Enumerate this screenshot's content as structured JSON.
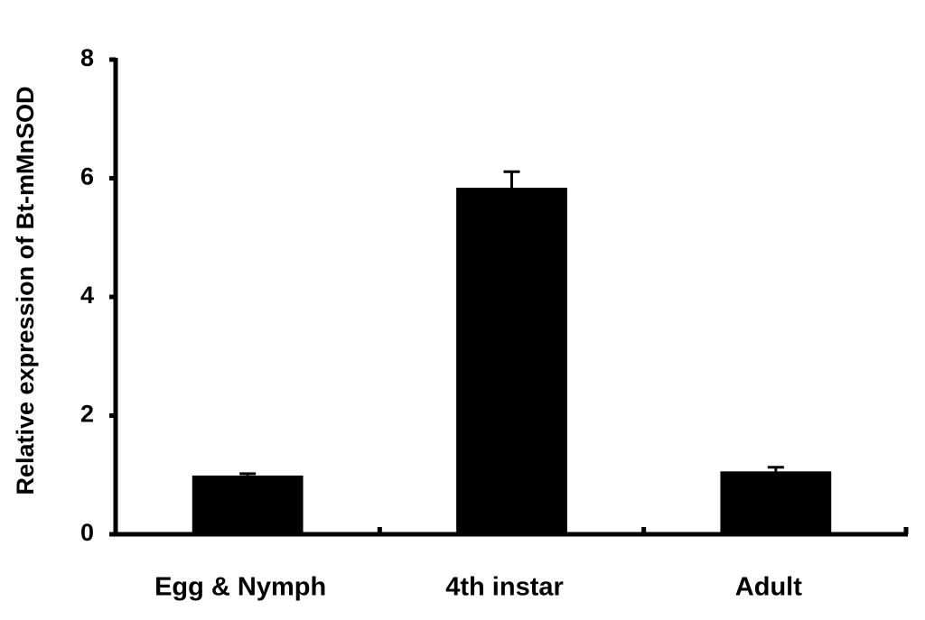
{
  "chart_data": {
    "type": "bar",
    "y_label": "Relative expression of Bt-mMnSOD",
    "categories": [
      "Egg & Nymph",
      "4th instar",
      "Adult"
    ],
    "values": [
      0.99,
      5.84,
      1.06
    ],
    "errors": [
      0.03,
      0.27,
      0.07
    ],
    "color": "#000000",
    "ylim": [
      0,
      8
    ],
    "yticks": [
      0,
      2,
      4,
      6,
      8
    ],
    "grid": false
  }
}
